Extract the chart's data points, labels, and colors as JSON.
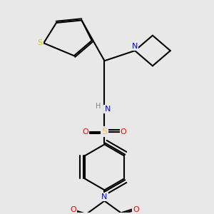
{
  "bg_color": "#e8e8e8",
  "atom_colors": {
    "C": "#000000",
    "N": "#0000ff",
    "O": "#ff0000",
    "S_thio": "#cccc00",
    "S_sulf": "#ffcc00",
    "H": "#808080"
  },
  "bond_color": "#000000",
  "bond_width": 1.5
}
